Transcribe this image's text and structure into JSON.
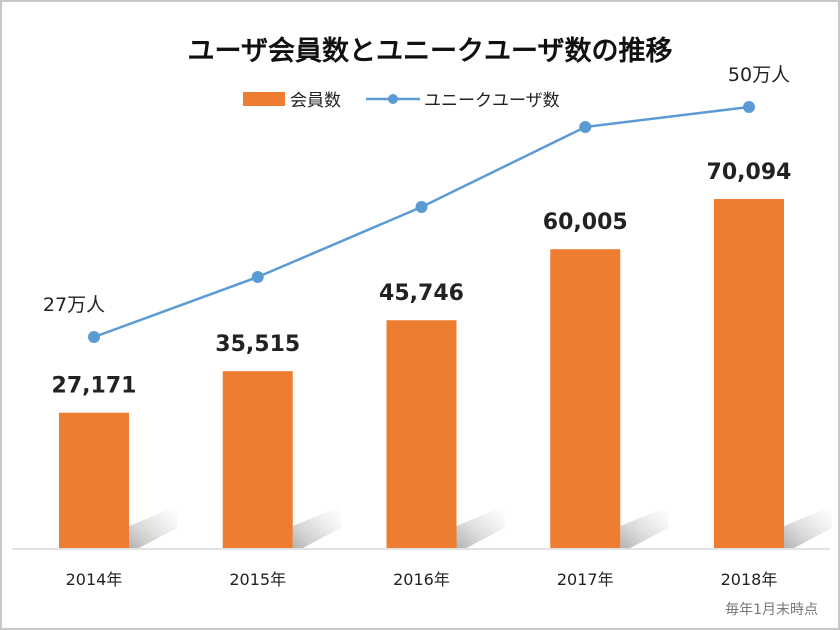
{
  "chart_data": {
    "type": "bar+line",
    "title": "ユーザ会員数とユニークユーザ数の推移",
    "categories": [
      "2014年",
      "2015年",
      "2016年",
      "2017年",
      "2018年"
    ],
    "series": [
      {
        "name": "会員数",
        "type": "bar",
        "color": "#ED7D31",
        "values": [
          27171,
          35515,
          45746,
          60005,
          70094
        ],
        "labels": [
          "27,171",
          "35,515",
          "45,746",
          "60,005",
          "70,094"
        ]
      },
      {
        "name": "ユニークユーザ数",
        "type": "line",
        "color": "#5B9BD5",
        "unit": "万人",
        "values": [
          27,
          33,
          40,
          48,
          50
        ],
        "labels": [
          "27万人",
          "",
          "",
          "",
          "50万人"
        ]
      }
    ],
    "legend": "top-center",
    "grid": false,
    "note": "毎年1月末時点"
  }
}
